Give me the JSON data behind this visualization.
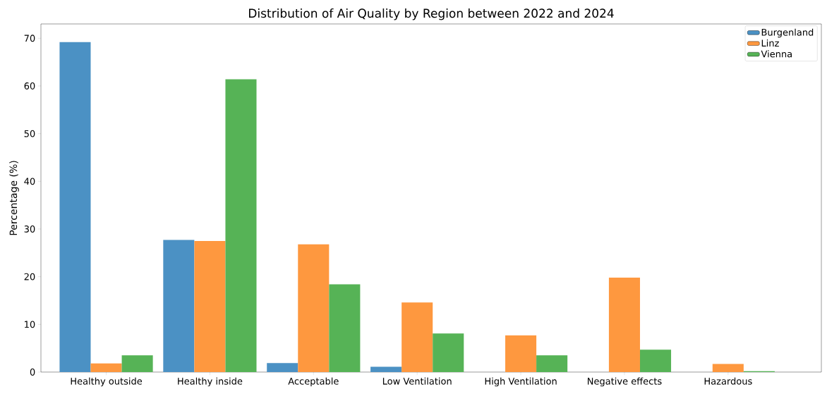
{
  "chart_data": {
    "type": "bar",
    "title": "Distribution of Air Quality by Region between 2022 and 2024",
    "ylabel": "Percentage (%)",
    "categories": [
      "Healthy outside",
      "Healthy inside",
      "Acceptable",
      "Low Ventilation",
      "High Ventilation",
      "Negative effects",
      "Hazardous"
    ],
    "series": [
      {
        "name": "Burgenland",
        "color": "#4b91c4",
        "values": [
          69.2,
          27.7,
          1.9,
          1.1,
          0,
          0,
          0
        ]
      },
      {
        "name": "Linz",
        "color": "#fe983f",
        "values": [
          1.8,
          27.5,
          26.8,
          14.6,
          7.7,
          19.8,
          1.7
        ]
      },
      {
        "name": "Vienna",
        "color": "#56b356",
        "values": [
          3.5,
          61.4,
          18.4,
          8.1,
          3.5,
          4.7,
          0.2
        ]
      }
    ],
    "ylim": [
      0,
      73
    ],
    "yticks": [
      0,
      10,
      20,
      30,
      40,
      50,
      60,
      70
    ],
    "legend": "top right",
    "grid": false
  }
}
